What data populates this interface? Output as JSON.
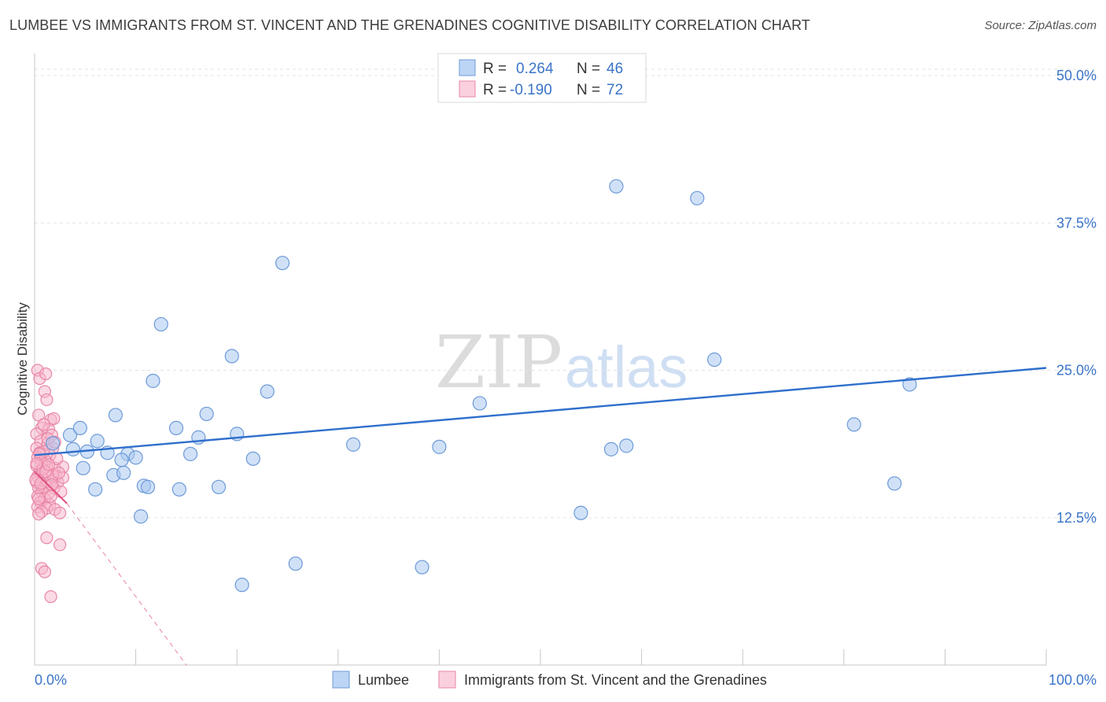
{
  "title": "LUMBEE VS IMMIGRANTS FROM ST. VINCENT AND THE GRENADINES COGNITIVE DISABILITY CORRELATION CHART",
  "source": "Source: ZipAtlas.com",
  "watermark": {
    "zip": "ZIP",
    "atlas": "atlas"
  },
  "colors": {
    "blue_fill": "#a9c8f0",
    "blue_stroke": "#6d9ad8",
    "blue_line": "#2f6fcc",
    "pink_fill": "#f7b6cb",
    "pink_stroke": "#e886a5",
    "pink_line": "#e04e7e",
    "grid": "#e3e3e3",
    "axis_text": "#3a74c8"
  },
  "legend": {
    "r_label": "R =",
    "n_label": "N =",
    "rows": [
      {
        "r": "0.264",
        "n": "46"
      },
      {
        "r": "-0.190",
        "n": "72"
      }
    ]
  },
  "chart_data": {
    "type": "scatter",
    "title": "LUMBEE VS IMMIGRANTS FROM ST. VINCENT AND THE GRENADINES COGNITIVE DISABILITY CORRELATION CHART",
    "xlabel": "",
    "ylabel": "Cognitive Disability",
    "xlim": [
      0,
      100
    ],
    "ylim": [
      0,
      52
    ],
    "x_tick_labels": [
      "0.0%",
      "100.0%"
    ],
    "y_ticks": [
      12.5,
      25.0,
      37.5,
      50.0
    ],
    "y_tick_labels": [
      "12.5%",
      "25.0%",
      "37.5%",
      "50.0%"
    ],
    "grid": "horizontal dashed",
    "legend_position": "top-center",
    "series": [
      {
        "name": "Lumbee",
        "color": "#a9c8f0",
        "points": [
          [
            3.5,
            19.5
          ],
          [
            1.8,
            18.8
          ],
          [
            3.8,
            18.3
          ],
          [
            4.5,
            20.1
          ],
          [
            6.2,
            19.0
          ],
          [
            7.2,
            18.0
          ],
          [
            4.8,
            16.7
          ],
          [
            6.0,
            14.9
          ],
          [
            5.2,
            18.1
          ],
          [
            7.8,
            16.1
          ],
          [
            8.8,
            16.3
          ],
          [
            9.2,
            17.9
          ],
          [
            8.0,
            21.2
          ],
          [
            10.0,
            17.6
          ],
          [
            8.6,
            17.4
          ],
          [
            10.8,
            15.2
          ],
          [
            11.2,
            15.1
          ],
          [
            11.7,
            24.1
          ],
          [
            10.5,
            12.6
          ],
          [
            14.0,
            20.1
          ],
          [
            14.3,
            14.9
          ],
          [
            15.4,
            17.9
          ],
          [
            16.2,
            19.3
          ],
          [
            17.0,
            21.3
          ],
          [
            18.2,
            15.1
          ],
          [
            19.5,
            26.2
          ],
          [
            20.0,
            19.6
          ],
          [
            21.6,
            17.5
          ],
          [
            23.0,
            23.2
          ],
          [
            12.5,
            28.9
          ],
          [
            20.5,
            6.8
          ],
          [
            24.5,
            34.1
          ],
          [
            25.8,
            8.6
          ],
          [
            31.5,
            18.7
          ],
          [
            38.3,
            8.3
          ],
          [
            40.0,
            18.5
          ],
          [
            44.0,
            22.2
          ],
          [
            54.0,
            12.9
          ],
          [
            57.0,
            18.3
          ],
          [
            57.5,
            40.6
          ],
          [
            58.5,
            18.6
          ],
          [
            65.5,
            39.6
          ],
          [
            67.2,
            25.9
          ],
          [
            81.0,
            20.4
          ],
          [
            85.0,
            15.4
          ],
          [
            86.5,
            23.8
          ]
        ]
      },
      {
        "name": "Immigrants from St. Vincent and the Grenadines",
        "color": "#f7b6cb",
        "points": [
          [
            0.3,
            25.0
          ],
          [
            0.5,
            24.3
          ],
          [
            1.1,
            24.7
          ],
          [
            1.0,
            23.2
          ],
          [
            1.2,
            22.5
          ],
          [
            0.4,
            21.2
          ],
          [
            1.6,
            20.8
          ],
          [
            1.9,
            20.9
          ],
          [
            0.7,
            20.1
          ],
          [
            1.4,
            20.0
          ],
          [
            0.2,
            19.6
          ],
          [
            1.7,
            19.5
          ],
          [
            0.6,
            19.0
          ],
          [
            1.3,
            18.8
          ],
          [
            0.2,
            18.4
          ],
          [
            1.8,
            18.4
          ],
          [
            0.5,
            18.0
          ],
          [
            1.5,
            17.8
          ],
          [
            0.3,
            17.6
          ],
          [
            1.0,
            17.4
          ],
          [
            0.7,
            17.2
          ],
          [
            0.2,
            16.9
          ],
          [
            1.2,
            16.8
          ],
          [
            2.0,
            16.7
          ],
          [
            2.8,
            16.8
          ],
          [
            0.5,
            16.4
          ],
          [
            1.3,
            16.2
          ],
          [
            0.3,
            16.0
          ],
          [
            2.1,
            16.0
          ],
          [
            0.9,
            15.8
          ],
          [
            1.6,
            15.6
          ],
          [
            0.2,
            15.5
          ],
          [
            2.3,
            15.5
          ],
          [
            1.1,
            15.2
          ],
          [
            0.4,
            15.0
          ],
          [
            1.9,
            15.0
          ],
          [
            0.7,
            14.7
          ],
          [
            1.4,
            14.6
          ],
          [
            0.3,
            14.3
          ],
          [
            1.0,
            14.1
          ],
          [
            0.6,
            13.8
          ],
          [
            1.5,
            13.6
          ],
          [
            0.3,
            13.4
          ],
          [
            1.2,
            13.3
          ],
          [
            2.0,
            13.2
          ],
          [
            0.7,
            13.0
          ],
          [
            0.4,
            12.8
          ],
          [
            2.5,
            12.9
          ],
          [
            1.2,
            10.8
          ],
          [
            2.5,
            10.2
          ],
          [
            0.7,
            8.2
          ],
          [
            1.0,
            7.9
          ],
          [
            1.6,
            5.8
          ],
          [
            2.8,
            15.9
          ],
          [
            2.2,
            17.5
          ],
          [
            0.9,
            18.1
          ],
          [
            0.1,
            15.7
          ],
          [
            1.6,
            14.3
          ],
          [
            0.5,
            17.9
          ],
          [
            1.8,
            16.1
          ],
          [
            0.8,
            16.6
          ],
          [
            2.6,
            14.7
          ],
          [
            1.3,
            19.2
          ],
          [
            0.4,
            14.1
          ],
          [
            2.0,
            18.9
          ],
          [
            0.9,
            20.4
          ],
          [
            1.7,
            15.3
          ],
          [
            0.2,
            17.1
          ],
          [
            1.1,
            16.4
          ],
          [
            2.4,
            16.3
          ],
          [
            0.6,
            15.4
          ],
          [
            1.4,
            17.0
          ]
        ]
      }
    ],
    "trend_lines": [
      {
        "series": "Lumbee",
        "x": [
          0,
          100
        ],
        "y": [
          17.8,
          25.2
        ],
        "style": "solid"
      },
      {
        "series": "Immigrants from St. Vincent and the Grenadines",
        "x": [
          0,
          3.2
        ],
        "y": [
          16.4,
          13.7
        ],
        "style": "solid"
      },
      {
        "series": "Immigrants from St. Vincent and the Grenadines",
        "x": [
          3.2,
          15.0
        ],
        "y": [
          13.7,
          0
        ],
        "style": "dashed"
      }
    ]
  }
}
